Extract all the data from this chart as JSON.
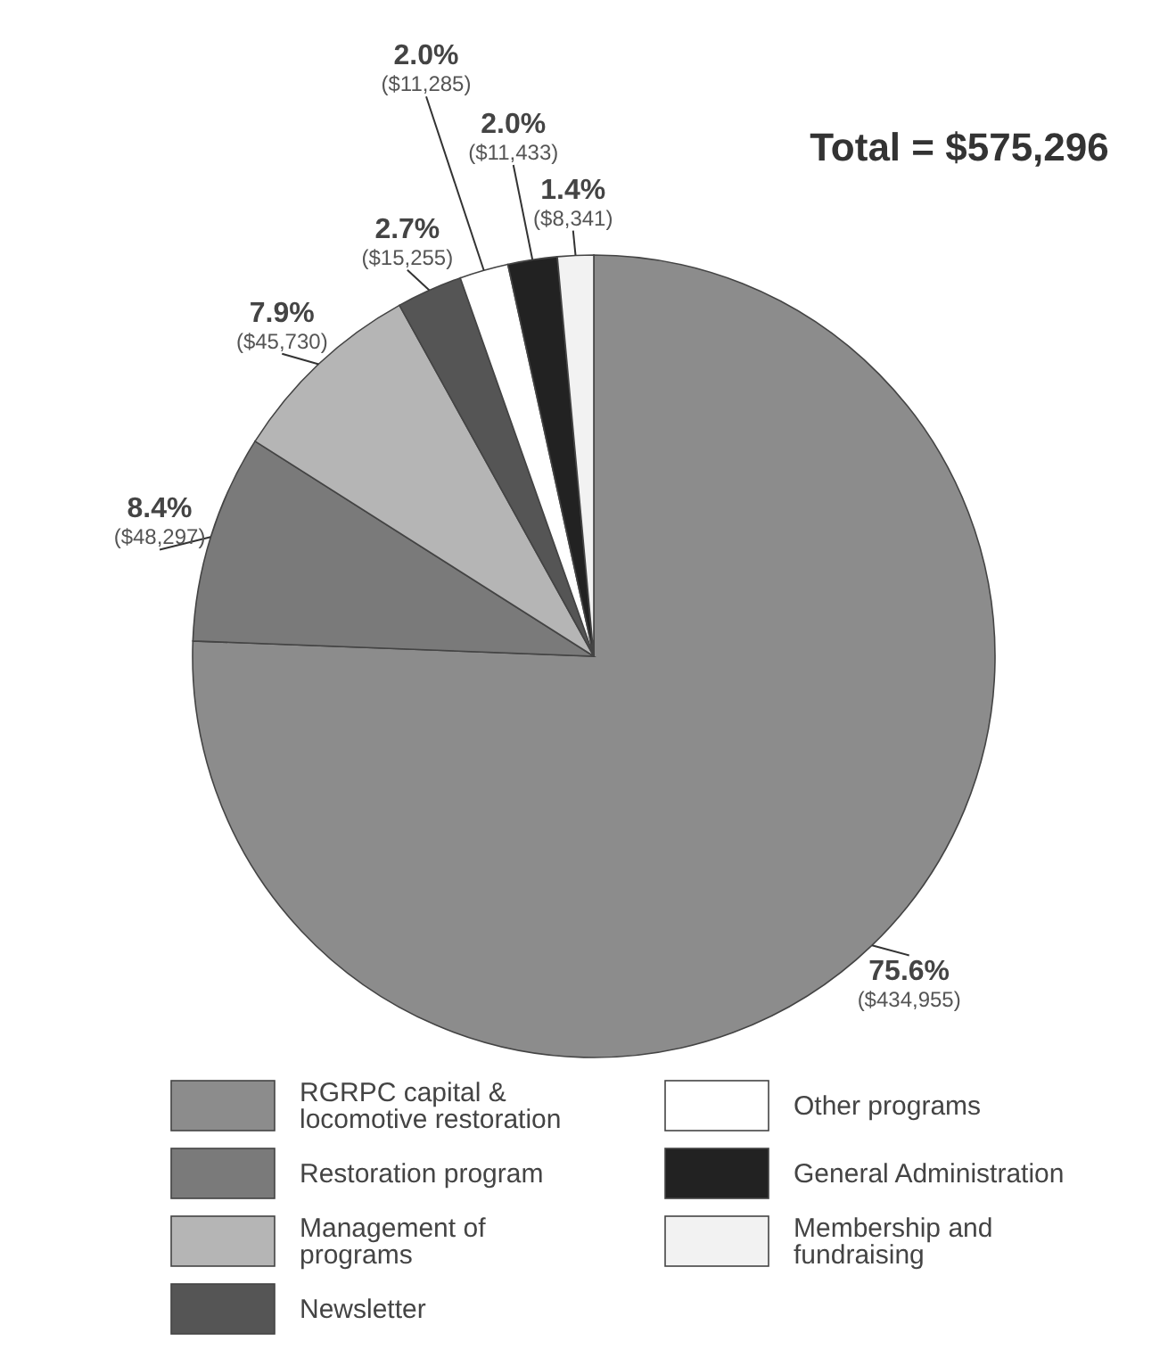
{
  "chart_data": {
    "type": "pie",
    "title": "Total = $575,296",
    "categories": [
      "RGRPC capital & locomotive restoration",
      "Restoration program",
      "Management of programs",
      "Newsletter",
      "Other programs",
      "General Administration",
      "Membership and fundraising"
    ],
    "values": [
      434955,
      48297,
      45730,
      15255,
      11285,
      11433,
      8341
    ],
    "colors": [
      "#8c8c8c",
      "#7a7a7a",
      "#b5b5b5",
      "#555555",
      "#ffffff",
      "#222222",
      "#f2f2f2"
    ],
    "value_labels": [
      "75.6%\n($434,955)",
      "8.4%\n($48,297)",
      "7.9%\n($45,730)",
      "2.7%\n($15,255)",
      "2.0%\n($11,285)",
      "2.0%\n($11,433)",
      "1.4%\n($8,341)"
    ],
    "legend": "bottom"
  }
}
